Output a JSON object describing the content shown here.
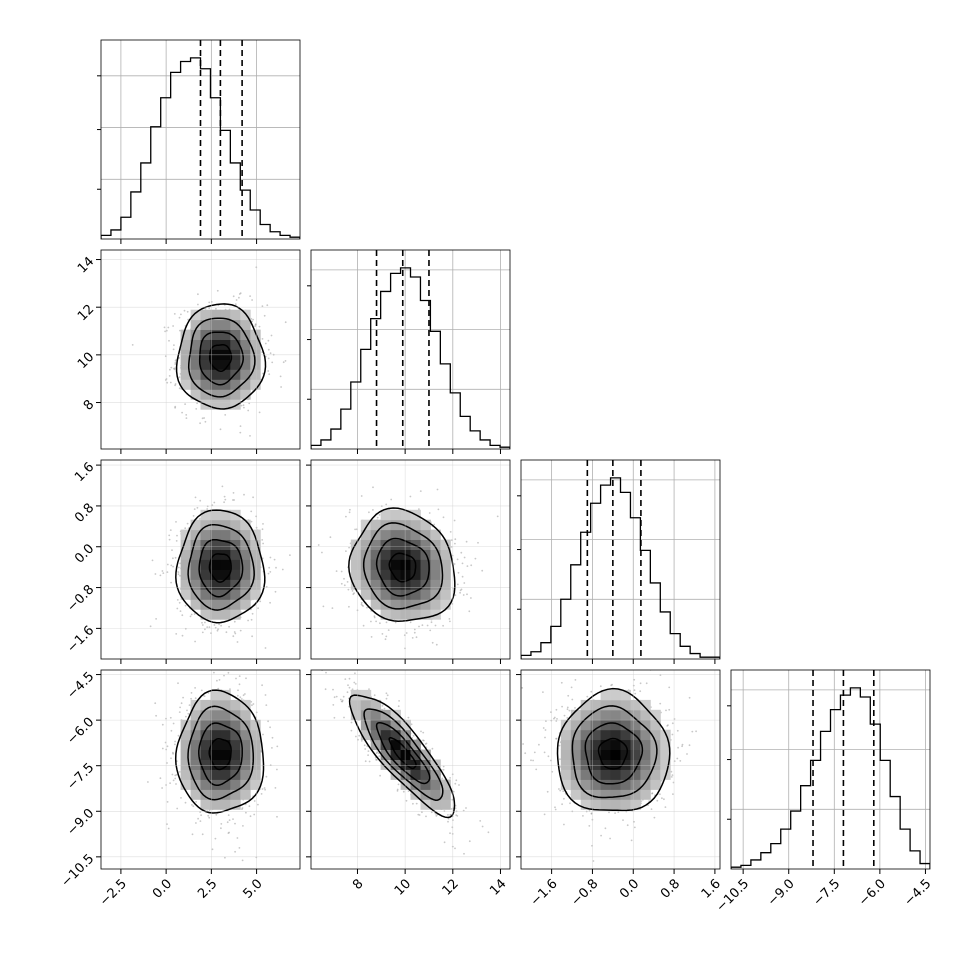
{
  "chart_data": {
    "type": "corner",
    "parameters": [
      {
        "range": [
          -3.6,
          7.4
        ],
        "ticks": [
          -2.5,
          0.0,
          2.5,
          5.0
        ],
        "tick_labels": [
          "−2.5",
          "0.0",
          "2.5",
          "5.0"
        ],
        "quantiles": [
          1.9,
          3.0,
          4.2
        ],
        "hist_heights": [
          0.02,
          0.05,
          0.12,
          0.26,
          0.42,
          0.62,
          0.78,
          0.92,
          0.98,
          1.0,
          0.94,
          0.78,
          0.6,
          0.42,
          0.27,
          0.16,
          0.08,
          0.04,
          0.02,
          0.01
        ],
        "grid": [
          0.3,
          0.56,
          0.82
        ]
      },
      {
        "range": [
          6.05,
          14.4
        ],
        "ticks": [
          8,
          10,
          12,
          14
        ],
        "tick_labels": [
          "8",
          "10",
          "12",
          "14"
        ],
        "quantiles": [
          8.8,
          9.9,
          11.0
        ],
        "hist_heights": [
          0.02,
          0.05,
          0.11,
          0.22,
          0.37,
          0.55,
          0.72,
          0.87,
          0.97,
          1.0,
          0.95,
          0.82,
          0.65,
          0.47,
          0.31,
          0.18,
          0.1,
          0.05,
          0.02,
          0.01
        ],
        "grid": [
          0.3,
          0.6,
          0.9
        ]
      },
      {
        "range": [
          -2.2,
          1.7
        ],
        "ticks": [
          -1.6,
          -0.8,
          0.0,
          0.8,
          1.6
        ],
        "tick_labels": [
          "−1.6",
          "−0.8",
          "0.0",
          "0.8",
          "1.6"
        ],
        "quantiles": [
          -0.9,
          -0.4,
          0.15
        ],
        "hist_heights": [
          0.02,
          0.04,
          0.09,
          0.18,
          0.33,
          0.52,
          0.7,
          0.86,
          0.96,
          1.0,
          0.92,
          0.78,
          0.6,
          0.42,
          0.26,
          0.14,
          0.07,
          0.03,
          0.01,
          0.01
        ],
        "grid": [
          0.3,
          0.6,
          0.9
        ]
      },
      {
        "range": [
          -10.9,
          -4.35
        ],
        "ticks": [
          -10.5,
          -9.0,
          -7.5,
          -6.0,
          -4.5
        ],
        "tick_labels": [
          "−10.5",
          "−9.0",
          "−7.5",
          "−6.0",
          "−4.5"
        ],
        "quantiles": [
          -8.2,
          -7.2,
          -6.2
        ],
        "hist_heights": [
          0.01,
          0.02,
          0.05,
          0.09,
          0.14,
          0.22,
          0.32,
          0.46,
          0.6,
          0.76,
          0.88,
          0.96,
          1.0,
          0.95,
          0.8,
          0.6,
          0.4,
          0.22,
          0.1,
          0.03
        ],
        "grid": [
          0.3,
          0.6,
          0.9
        ]
      }
    ],
    "centers": [
      3.0,
      9.9,
      -0.4,
      -7.1
    ],
    "sigmas": [
      1.2,
      1.1,
      0.55,
      1.0
    ],
    "correlations": [
      [
        1.0,
        0.0,
        0.0,
        0.0
      ],
      [
        0.0,
        1.0,
        -0.1,
        -0.85
      ],
      [
        0.0,
        -0.1,
        1.0,
        0.0
      ],
      [
        0.0,
        -0.85,
        0.0,
        1.0
      ]
    ],
    "contour_levels_sigma": [
      0.5,
      1.0,
      1.5,
      2.0
    ],
    "quantile_line_style": "dashed"
  }
}
